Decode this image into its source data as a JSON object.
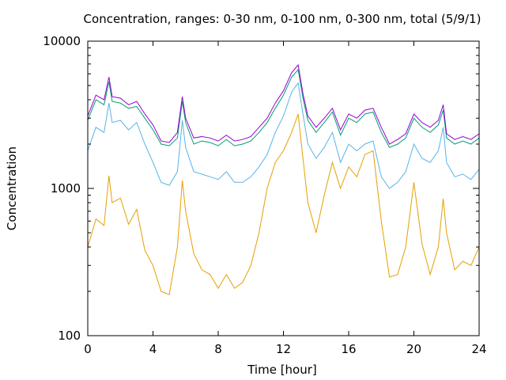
{
  "chart_data": {
    "type": "line",
    "title": "Concentration, ranges: 0-30 nm, 0-100 nm, 0-300 nm, total (5/9/1)",
    "xlabel": "Time [hour]",
    "ylabel": "Concentration",
    "xlim": [
      0,
      24
    ],
    "ylim": [
      100,
      10000
    ],
    "yscale": "log",
    "grid": false,
    "legend": "none",
    "x_ticks": [
      0,
      4,
      8,
      12,
      16,
      20,
      24
    ],
    "x_tick_labels": [
      "0",
      "4",
      "8",
      "12",
      "16",
      "20",
      "24"
    ],
    "y_ticks": [
      100,
      1000,
      10000
    ],
    "y_tick_labels": [
      "100",
      "1000",
      "10000"
    ],
    "x": [
      0,
      0.5,
      1,
      1.3,
      1.5,
      2,
      2.5,
      3,
      3.5,
      4,
      4.5,
      5,
      5.5,
      5.8,
      6,
      6.5,
      7,
      7.5,
      8,
      8.5,
      9,
      9.5,
      10,
      10.5,
      11,
      11.5,
      12,
      12.5,
      12.9,
      13.2,
      13.5,
      14,
      14.5,
      15,
      15.5,
      16,
      16.5,
      17,
      17.5,
      18,
      18.5,
      19,
      19.5,
      20,
      20.5,
      21,
      21.5,
      21.8,
      22,
      22.5,
      23,
      23.5,
      24
    ],
    "series": [
      {
        "color": "#e69f00",
        "values": [
          400,
          620,
          560,
          1220,
          800,
          860,
          570,
          720,
          380,
          300,
          200,
          190,
          400,
          1130,
          700,
          360,
          280,
          260,
          210,
          260,
          210,
          230,
          300,
          500,
          1000,
          1500,
          1800,
          2400,
          3200,
          1600,
          800,
          500,
          900,
          1500,
          1000,
          1400,
          1200,
          1700,
          1800,
          600,
          250,
          260,
          400,
          1100,
          420,
          260,
          400,
          850,
          500,
          280,
          320,
          300,
          400
        ]
      },
      {
        "color": "#56b4e9",
        "values": [
          1800,
          2600,
          2400,
          3800,
          2800,
          2900,
          2500,
          2800,
          2000,
          1500,
          1100,
          1050,
          1300,
          2900,
          1900,
          1300,
          1250,
          1200,
          1150,
          1300,
          1100,
          1100,
          1200,
          1400,
          1700,
          2400,
          3100,
          4500,
          5200,
          3200,
          2000,
          1600,
          1900,
          2400,
          1500,
          2000,
          1800,
          2000,
          2100,
          1200,
          1000,
          1100,
          1300,
          2000,
          1600,
          1500,
          1800,
          2600,
          1500,
          1200,
          1250,
          1150,
          1350
        ]
      },
      {
        "color": "#009e73",
        "values": [
          2900,
          4000,
          3700,
          5300,
          3900,
          3800,
          3500,
          3600,
          3000,
          2500,
          2000,
          1950,
          2200,
          3900,
          2800,
          2000,
          2100,
          2050,
          1950,
          2150,
          1950,
          2000,
          2100,
          2400,
          2800,
          3500,
          4300,
          5700,
          6400,
          4100,
          2900,
          2400,
          2800,
          3300,
          2300,
          3000,
          2800,
          3200,
          3300,
          2400,
          1900,
          2000,
          2200,
          3000,
          2600,
          2400,
          2700,
          3400,
          2200,
          2000,
          2100,
          2000,
          2200
        ]
      },
      {
        "color": "#9400d3",
        "values": [
          3100,
          4300,
          4000,
          5700,
          4200,
          4100,
          3700,
          3900,
          3200,
          2700,
          2100,
          2050,
          2400,
          4200,
          3000,
          2200,
          2250,
          2200,
          2100,
          2300,
          2100,
          2150,
          2250,
          2600,
          3000,
          3800,
          4600,
          6100,
          6900,
          4400,
          3100,
          2600,
          3000,
          3500,
          2500,
          3200,
          3000,
          3400,
          3500,
          2600,
          2000,
          2150,
          2350,
          3200,
          2800,
          2600,
          2900,
          3700,
          2350,
          2150,
          2250,
          2150,
          2350
        ]
      }
    ]
  }
}
